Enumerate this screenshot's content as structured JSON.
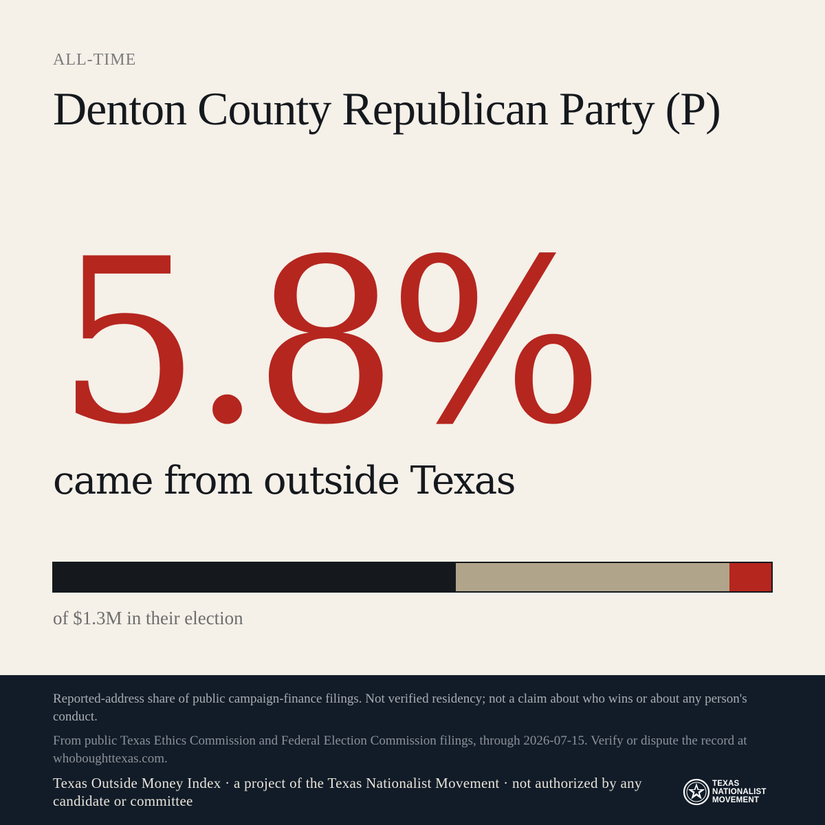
{
  "header": {
    "kicker": "ALL-TIME",
    "title": "Denton County Republican Party (P)"
  },
  "headline": {
    "percent": "5.8%",
    "subline": "came from outside Texas"
  },
  "bar": {
    "segments": [
      {
        "name": "dark",
        "fraction": 0.56,
        "color": "#15191e"
      },
      {
        "name": "tan",
        "fraction": 0.382,
        "color": "#b0a48a"
      },
      {
        "name": "outside-texas",
        "fraction": 0.058,
        "color": "#b5261f"
      }
    ],
    "caption": "of $1.3M in their election"
  },
  "footer": {
    "disclaimer": "Reported-address share of public campaign-finance filings. Not verified residency; not a claim about who wins or about any person's conduct.",
    "source": "From public Texas Ethics Commission and Federal Election Commission filings, through 2026-07-15. Verify or dispute the record at whoboughttexas.com.",
    "credit": "Texas Outside Money Index · a project of the Texas Nationalist Movement · not authorized by any candidate or committee",
    "logo": {
      "icon": "star-seal-icon",
      "line1": "TEXAS",
      "line2": "NATIONALIST",
      "line3": "MOVEMENT"
    }
  },
  "colors": {
    "background": "#f5f0e8",
    "accent_red": "#b5261f",
    "ink": "#15191e",
    "footer_bg": "#121c28"
  }
}
